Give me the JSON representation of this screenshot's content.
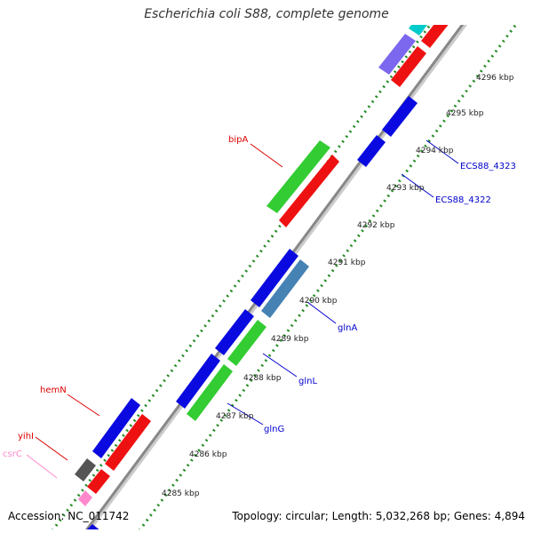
{
  "title": "Escherichia coli S88, complete genome",
  "footer": {
    "accession": "Accession: NC_011742",
    "summary": "Topology: circular; Length: 5,032,268 bp; Genes: 4,894"
  },
  "colors": {
    "red": "#ee1111",
    "green": "#33cc33",
    "blue": "#0a0ae0",
    "steelblue": "#4682b4",
    "purple": "#7b68ee",
    "cyan": "#00cccc",
    "gray": "#555555",
    "pink": "#ff88cc",
    "backbone": "#888888",
    "ticks": "#228b22",
    "label_red": "#dd0000",
    "label_blue": "#0000cc"
  },
  "tick_labels": [
    "4285 kbp",
    "4286 kbp",
    "4287 kbp",
    "4288 kbp",
    "4289 kbp",
    "4290 kbp",
    "4291 kbp",
    "4292 kbp",
    "4293 kbp",
    "4294 kbp",
    "4295 kbp",
    "4296 kbp"
  ],
  "gene_labels": [
    {
      "name": "bipA",
      "color": "red"
    },
    {
      "name": "hemN",
      "color": "red"
    },
    {
      "name": "yihI",
      "color": "red"
    },
    {
      "name": "csrC",
      "color": "pink"
    },
    {
      "name": "glnA",
      "color": "blue"
    },
    {
      "name": "glnL",
      "color": "blue"
    },
    {
      "name": "glnG",
      "color": "blue"
    },
    {
      "name": "ECS88_4323",
      "color": "blue"
    },
    {
      "name": "ECS88_4322",
      "color": "blue"
    }
  ]
}
